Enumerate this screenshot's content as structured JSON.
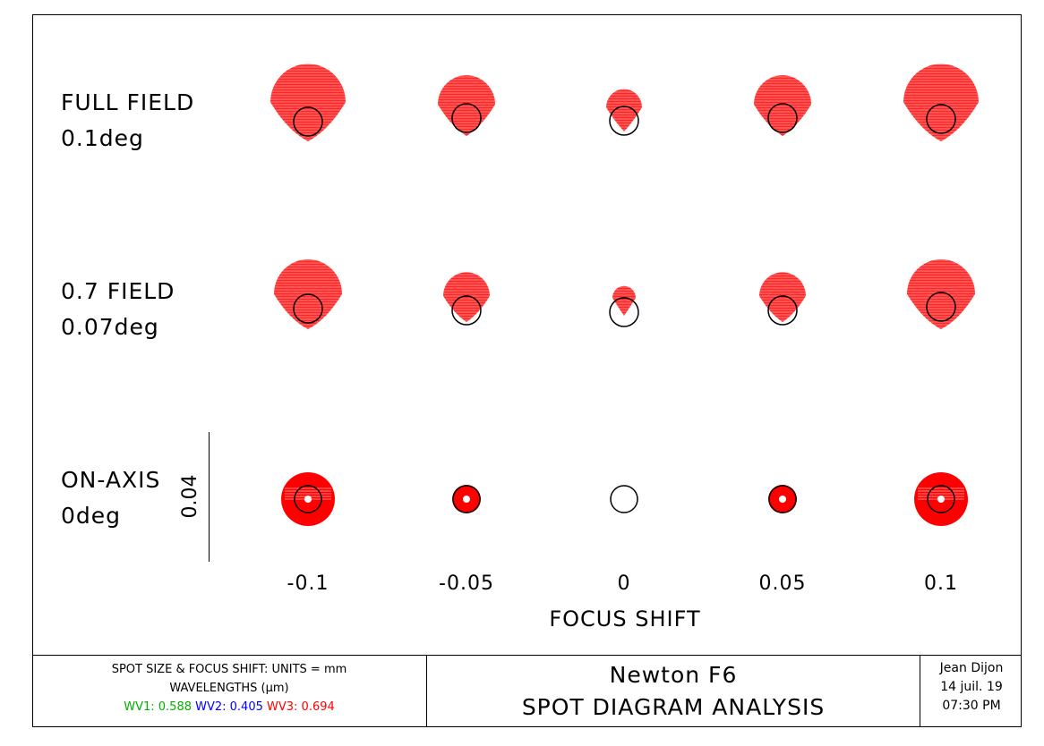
{
  "field_rows": [
    {
      "label": "FULL FIELD",
      "sublabel": "0.1deg"
    },
    {
      "label": "0.7 FIELD",
      "sublabel": "0.07deg"
    },
    {
      "label": "ON-AXIS",
      "sublabel": "0deg"
    }
  ],
  "scale_bar": {
    "label": "0.04"
  },
  "focus_shifts": [
    "-0.1",
    "-0.05",
    "0",
    "0.05",
    "0.1"
  ],
  "axis_title": "FOCUS SHIFT",
  "units_box": {
    "line1": "SPOT SIZE & FOCUS SHIFT: UNITS = mm",
    "line2": "WAVELENGTHS (μm)",
    "wavelengths": [
      {
        "label": "WV1: 0.588",
        "color": "#00b000"
      },
      {
        "label": "WV2: 0.405",
        "color": "#0000ff"
      },
      {
        "label": "WV3: 0.694",
        "color": "#ff0000"
      }
    ]
  },
  "title_box": {
    "line1": "Newton F6",
    "line2": "SPOT DIAGRAM ANALYSIS"
  },
  "info_box": {
    "author": "Jean Dijon",
    "date": "14 juil. 19",
    "time": "07:30 PM"
  },
  "colors": {
    "spot": "#ff0000",
    "airy_circle": "#000000"
  }
}
